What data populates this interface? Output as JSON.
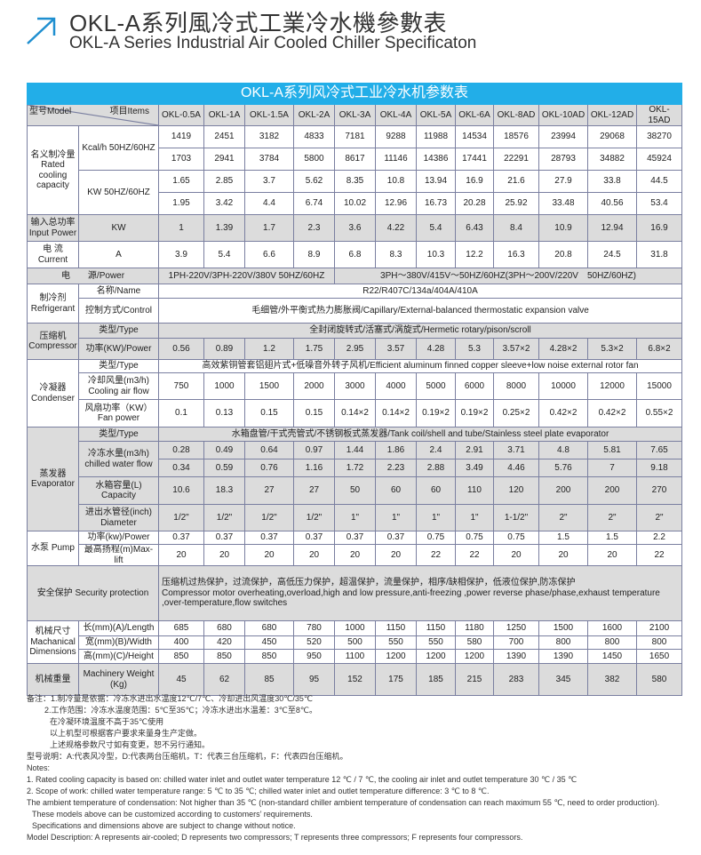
{
  "header": {
    "title_cn": "OKL-A系列風冷式工業冷水機參數表",
    "title_en": "OKL-A Series Industrial Air Cooled Chiller Specificaton",
    "arrow_icon": "arrow-up-right-icon",
    "accent": "#22aee8"
  },
  "table": {
    "title": "OKL-A系列风冷式工业冷水机参数表",
    "model_label": "型号Model",
    "items_label": "项目Items",
    "models": [
      "OKL-0.5A",
      "OKL-1A",
      "OKL-1.5A",
      "OKL-2A",
      "OKL-3A",
      "OKL-4A",
      "OKL-5A",
      "OKL-6A",
      "OKL-8AD",
      "OKL-10AD",
      "OKL-12AD",
      "OKL-15AD"
    ],
    "labels": {
      "rated": "名义制冷量 Rated cooling capacity",
      "kcal": "Kcal/h 50HZ/60HZ",
      "kw": "KW 50HZ/60HZ",
      "input": "输入总功率 Input Power",
      "input_unit": "KW",
      "current": "电 流 Current",
      "current_unit": "A",
      "power": "电　　源/Power",
      "refrigerant": "制冷剂 Refrigerant",
      "ref_name": "名称/Name",
      "ref_control": "控制方式/Control",
      "compressor": "压缩机 Compressor",
      "comp_type": "类型/Type",
      "comp_power": "功率(KW)/Power",
      "condenser": "冷凝器 Condenser",
      "cond_type": "类型/Type",
      "cond_air": "冷却风量(m3/h) Cooling air flow",
      "cond_fan": "风扇功率（KW） Fan power",
      "evaporator": "蒸发器 Evaporator",
      "evap_type": "类型/Type",
      "evap_flow": "冷冻水量(m3/h) chilled water flow",
      "evap_cap": "水箱容量(L) Capacity",
      "evap_dia": "进出水管径(inch) Diameter",
      "pump": "水泵 Pump",
      "pump_power": "功率(kw)/Power",
      "pump_lift": "最高扬程(m)Max-lift",
      "protection": "安全保护 Security protection",
      "dims": "机械尺寸 Machanical Dimensions",
      "length": "长(mm)(A)/Length",
      "width": "宽(mm)(B)/Width",
      "height": "高(mm)(C)/Height",
      "weight": "机械重量",
      "weight_unit": "Machinery Weight (Kg)"
    },
    "spans": {
      "power_1ph": "1PH-220V/3PH-220V/380V 50HZ/60HZ",
      "power_3ph": "3PH～380V/415V～50HZ/60HZ(3PH～200V/220V　50HZ/60HZ)",
      "ref_name": "R22/R407C/134a/404A/410A",
      "ref_control": "毛细管/外平衡式热力膨胀阀/Capillary/External-balanced thermostatic expansion valve",
      "comp_type": "全封闭旋转式/活塞式/涡旋式/Hermetic rotary/pison/scroll",
      "cond_type": "高效紫铜管套铝翅片式+低噪音外转子风机/Efficient aluminum finned copper sleeve+low noise external rotor fan",
      "evap_type": "水箱盘管/干式壳管式/不锈钢板式蒸发器/Tank coil/shell and tube/Stainless steel plate evaporator",
      "protection_cn": "压缩机过热保护，过流保护，高低压力保护，超温保护，流量保护，相序/缺相保护，低液位保护,防冻保护",
      "protection_en": "Compressor motor overheating,overload,high and low pressure,anti-freezing ,power reverse phase/phase,exhaust temperature ,over-temperature,flow switches"
    },
    "values": {
      "kcal_50": [
        "1419",
        "2451",
        "3182",
        "4833",
        "7181",
        "9288",
        "11988",
        "14534",
        "18576",
        "23994",
        "29068",
        "38270"
      ],
      "kcal_60": [
        "1703",
        "2941",
        "3784",
        "5800",
        "8617",
        "11146",
        "14386",
        "17441",
        "22291",
        "28793",
        "34882",
        "45924"
      ],
      "kw_50": [
        "1.65",
        "2.85",
        "3.7",
        "5.62",
        "8.35",
        "10.8",
        "13.94",
        "16.9",
        "21.6",
        "27.9",
        "33.8",
        "44.5"
      ],
      "kw_60": [
        "1.95",
        "3.42",
        "4.4",
        "6.74",
        "10.02",
        "12.96",
        "16.73",
        "20.28",
        "25.92",
        "33.48",
        "40.56",
        "53.4"
      ],
      "input": [
        "1",
        "1.39",
        "1.7",
        "2.3",
        "3.6",
        "4.22",
        "5.4",
        "6.43",
        "8.4",
        "10.9",
        "12.94",
        "16.9"
      ],
      "current": [
        "3.9",
        "5.4",
        "6.6",
        "8.9",
        "6.8",
        "8.3",
        "10.3",
        "12.2",
        "16.3",
        "20.8",
        "24.5",
        "31.8"
      ],
      "comp_power": [
        "0.56",
        "0.89",
        "1.2",
        "1.75",
        "2.95",
        "3.57",
        "4.28",
        "5.3",
        "3.57×2",
        "4.28×2",
        "5.3×2",
        "6.8×2"
      ],
      "cond_air": [
        "750",
        "1000",
        "1500",
        "2000",
        "3000",
        "4000",
        "5000",
        "6000",
        "8000",
        "10000",
        "12000",
        "15000"
      ],
      "cond_fan": [
        "0.1",
        "0.13",
        "0.15",
        "0.15",
        "0.14×2",
        "0.14×2",
        "0.19×2",
        "0.19×2",
        "0.25×2",
        "0.42×2",
        "0.42×2",
        "0.55×2"
      ],
      "evap_flow_1": [
        "0.28",
        "0.49",
        "0.64",
        "0.97",
        "1.44",
        "1.86",
        "2.4",
        "2.91",
        "3.71",
        "4.8",
        "5.81",
        "7.65"
      ],
      "evap_flow_2": [
        "0.34",
        "0.59",
        "0.76",
        "1.16",
        "1.72",
        "2.23",
        "2.88",
        "3.49",
        "4.46",
        "5.76",
        "7",
        "9.18"
      ],
      "evap_cap": [
        "10.6",
        "18.3",
        "27",
        "27",
        "50",
        "60",
        "60",
        "110",
        "120",
        "200",
        "200",
        "270"
      ],
      "evap_dia": [
        "1/2\"",
        "1/2\"",
        "1/2\"",
        "1/2\"",
        "1\"",
        "1\"",
        "1\"",
        "1\"",
        "1-1/2\"",
        "2\"",
        "2\"",
        "2\""
      ],
      "pump_power": [
        "0.37",
        "0.37",
        "0.37",
        "0.37",
        "0.37",
        "0.37",
        "0.75",
        "0.75",
        "0.75",
        "1.5",
        "1.5",
        "2.2"
      ],
      "pump_lift": [
        "20",
        "20",
        "20",
        "20",
        "20",
        "20",
        "22",
        "22",
        "20",
        "20",
        "20",
        "22"
      ],
      "length": [
        "685",
        "680",
        "680",
        "780",
        "1000",
        "1150",
        "1150",
        "1180",
        "1250",
        "1500",
        "1600",
        "2100"
      ],
      "width": [
        "400",
        "420",
        "450",
        "520",
        "500",
        "550",
        "550",
        "580",
        "700",
        "800",
        "800",
        "800"
      ],
      "height": [
        "850",
        "850",
        "850",
        "950",
        "1100",
        "1200",
        "1200",
        "1200",
        "1390",
        "1390",
        "1450",
        "1650"
      ],
      "weight": [
        "45",
        "62",
        "85",
        "95",
        "152",
        "175",
        "185",
        "215",
        "283",
        "345",
        "382",
        "580"
      ]
    }
  },
  "notes": {
    "cn": [
      "备注：1.制冷量是依据：冷冻水进出水温度12℃/7℃、冷却进出风温度30℃/35℃",
      "2.工作范围：冷冻水温度范围：5℃至35℃；冷冻水进出水温差：3℃至8℃。",
      "在冷凝环境温度不高于35℃使用",
      "以上机型可根据客户要求来量身生产定做。",
      "上述规格参数尺寸如有变更，恕不另行通知。",
      "型号说明：A:代表风冷型，D:代表两台压缩机，T：代表三台压缩机，F：代表四台压缩机。"
    ],
    "en": [
      "Notes:",
      "1. Rated cooling capacity is based on: chilled water inlet and outlet water temperature 12 ℃ / 7 ℃, the cooling air inlet and outlet temperature 30 ℃ / 35 ℃",
      "2. Scope of work: chilled water temperature range: 5 ℃ to 35 ℃; chilled water inlet and outlet temperature difference: 3 ℃ to 8 ℃.",
      "The ambient temperature of condensation: Not higher than 35 ℃ (non-standard chiller ambient temperature of condensation can reach maximum 55 ℃, need to order production).",
      "These models above can be customized according to customers’ requirements.",
      "Specifications and dimensions above are subject to change without notice.",
      "Model Description: A represents air-cooled; D represents two compressors; T represents three compressors; F represents four compressors."
    ]
  }
}
